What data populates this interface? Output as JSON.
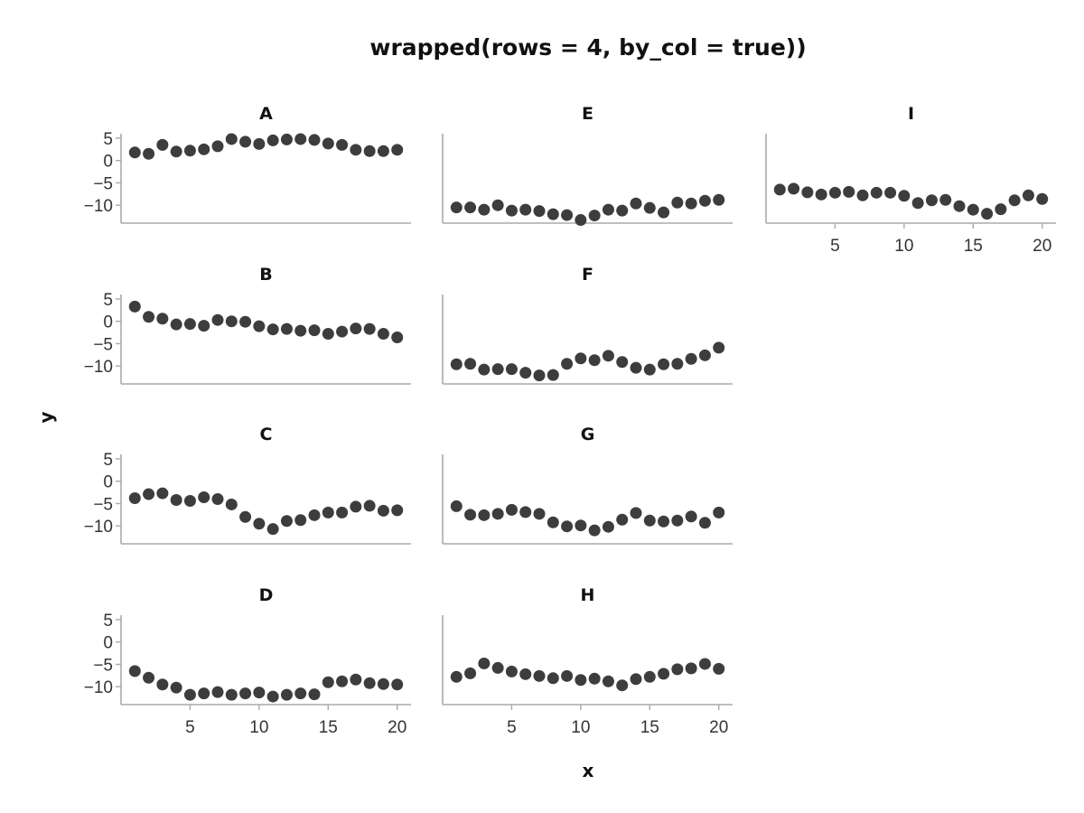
{
  "chart_data": {
    "type": "scatter",
    "title": "wrapped(rows = 4, by_col = true))",
    "xlabel": "x",
    "ylabel": "y",
    "xlim": [
      0,
      21
    ],
    "ylim": [
      -14,
      6
    ],
    "xticks": [
      5,
      10,
      15,
      20
    ],
    "yticks": [
      5,
      0,
      -5,
      -10
    ],
    "ytick_labels": [
      "5",
      "0",
      "−5",
      "−10"
    ],
    "grid": false,
    "point_color": "#3d3d3d",
    "x": [
      1,
      2,
      3,
      4,
      5,
      6,
      7,
      8,
      9,
      10,
      11,
      12,
      13,
      14,
      15,
      16,
      17,
      18,
      19,
      20
    ],
    "panels": [
      {
        "name": "A",
        "values": [
          1.8,
          1.5,
          3.5,
          2.0,
          2.2,
          2.5,
          3.2,
          4.8,
          4.2,
          3.7,
          4.5,
          4.7,
          4.8,
          4.6,
          3.8,
          3.5,
          2.4,
          2.1,
          2.1,
          2.4
        ]
      },
      {
        "name": "B",
        "values": [
          3.3,
          1.0,
          0.6,
          -0.7,
          -0.6,
          -1.0,
          0.3,
          0.0,
          -0.1,
          -1.1,
          -1.8,
          -1.7,
          -2.1,
          -2.0,
          -2.8,
          -2.3,
          -1.6,
          -1.7,
          -2.8,
          -3.6
        ]
      },
      {
        "name": "C",
        "values": [
          -3.8,
          -2.9,
          -2.7,
          -4.2,
          -4.4,
          -3.6,
          -4.0,
          -5.2,
          -8.0,
          -9.5,
          -10.7,
          -8.9,
          -8.7,
          -7.6,
          -7.0,
          -7.0,
          -5.7,
          -5.5,
          -6.6,
          -6.5
        ]
      },
      {
        "name": "D",
        "values": [
          -6.5,
          -8.0,
          -9.5,
          -10.2,
          -11.8,
          -11.5,
          -11.2,
          -11.8,
          -11.5,
          -11.3,
          -12.2,
          -11.8,
          -11.5,
          -11.7,
          -9.0,
          -8.8,
          -8.4,
          -9.2,
          -9.4,
          -9.5
        ]
      },
      {
        "name": "E",
        "values": [
          -10.5,
          -10.5,
          -11.0,
          -10.0,
          -11.2,
          -11.0,
          -11.3,
          -12.0,
          -12.2,
          -13.3,
          -12.3,
          -11.0,
          -11.2,
          -9.6,
          -10.6,
          -11.6,
          -9.4,
          -9.6,
          -9.0,
          -8.8
        ]
      },
      {
        "name": "F",
        "values": [
          -9.6,
          -9.5,
          -10.8,
          -10.7,
          -10.7,
          -11.5,
          -12.1,
          -12.0,
          -9.5,
          -8.3,
          -8.7,
          -7.7,
          -9.1,
          -10.4,
          -10.8,
          -9.6,
          -9.5,
          -8.4,
          -7.6,
          -5.9
        ]
      },
      {
        "name": "G",
        "values": [
          -5.6,
          -7.5,
          -7.6,
          -7.3,
          -6.4,
          -6.9,
          -7.3,
          -9.2,
          -10.1,
          -9.9,
          -11.0,
          -10.2,
          -8.6,
          -7.1,
          -8.8,
          -9.0,
          -8.8,
          -7.9,
          -9.3,
          -7.0
        ]
      },
      {
        "name": "H",
        "values": [
          -7.8,
          -7.0,
          -4.8,
          -5.8,
          -6.6,
          -7.2,
          -7.6,
          -8.1,
          -7.6,
          -8.5,
          -8.2,
          -8.8,
          -9.7,
          -8.3,
          -7.8,
          -7.1,
          -6.1,
          -5.9,
          -4.9,
          -6.0
        ]
      },
      {
        "name": "I",
        "values": [
          -6.5,
          -6.3,
          -7.1,
          -7.6,
          -7.2,
          -7.0,
          -7.8,
          -7.2,
          -7.2,
          -7.9,
          -9.5,
          -8.9,
          -8.8,
          -10.2,
          -11.0,
          -11.9,
          -10.9,
          -8.9,
          -7.8,
          -8.6
        ]
      }
    ]
  }
}
